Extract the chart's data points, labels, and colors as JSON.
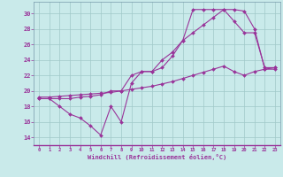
{
  "xlabel": "Windchill (Refroidissement éolien,°C)",
  "xlim": [
    -0.5,
    23.5
  ],
  "ylim": [
    13.0,
    31.5
  ],
  "xticks": [
    0,
    1,
    2,
    3,
    4,
    5,
    6,
    7,
    8,
    9,
    10,
    11,
    12,
    13,
    14,
    15,
    16,
    17,
    18,
    19,
    20,
    21,
    22,
    23
  ],
  "yticks": [
    14,
    16,
    18,
    20,
    22,
    24,
    26,
    28,
    30
  ],
  "bg_color": "#c9eaea",
  "line_color": "#993399",
  "grid_color": "#a0c8c8",
  "line1_x": [
    0,
    1,
    2,
    3,
    4,
    5,
    6,
    7,
    8,
    9,
    10,
    11,
    12,
    13,
    14,
    15,
    16,
    17,
    18,
    19,
    20,
    21,
    22,
    23
  ],
  "line1_y": [
    19.2,
    19.2,
    19.3,
    19.4,
    19.5,
    19.6,
    19.7,
    19.8,
    20.0,
    20.2,
    20.4,
    20.6,
    20.9,
    21.2,
    21.6,
    22.0,
    22.4,
    22.8,
    23.2,
    22.5,
    22.0,
    22.5,
    22.8,
    23.0
  ],
  "line2_x": [
    0,
    1,
    2,
    3,
    4,
    5,
    6,
    7,
    8,
    9,
    10,
    11,
    12,
    13,
    14,
    15,
    16,
    17,
    18,
    19,
    20,
    21,
    22,
    23
  ],
  "line2_y": [
    19.0,
    19.0,
    18.0,
    17.0,
    16.5,
    15.5,
    14.3,
    18.0,
    16.0,
    21.0,
    22.5,
    22.5,
    24.0,
    25.0,
    26.5,
    27.5,
    28.5,
    29.5,
    30.5,
    29.0,
    27.5,
    27.5,
    23.0,
    23.0
  ],
  "line3_x": [
    0,
    1,
    2,
    3,
    4,
    5,
    6,
    7,
    8,
    9,
    10,
    11,
    12,
    13,
    14,
    15,
    16,
    17,
    18,
    19,
    20,
    21,
    22,
    23
  ],
  "line3_y": [
    19.0,
    19.0,
    19.0,
    19.0,
    19.2,
    19.3,
    19.5,
    20.0,
    20.0,
    22.0,
    22.5,
    22.5,
    23.0,
    24.5,
    26.5,
    30.5,
    30.5,
    30.5,
    30.5,
    30.5,
    30.3,
    28.0,
    22.8,
    22.8
  ]
}
